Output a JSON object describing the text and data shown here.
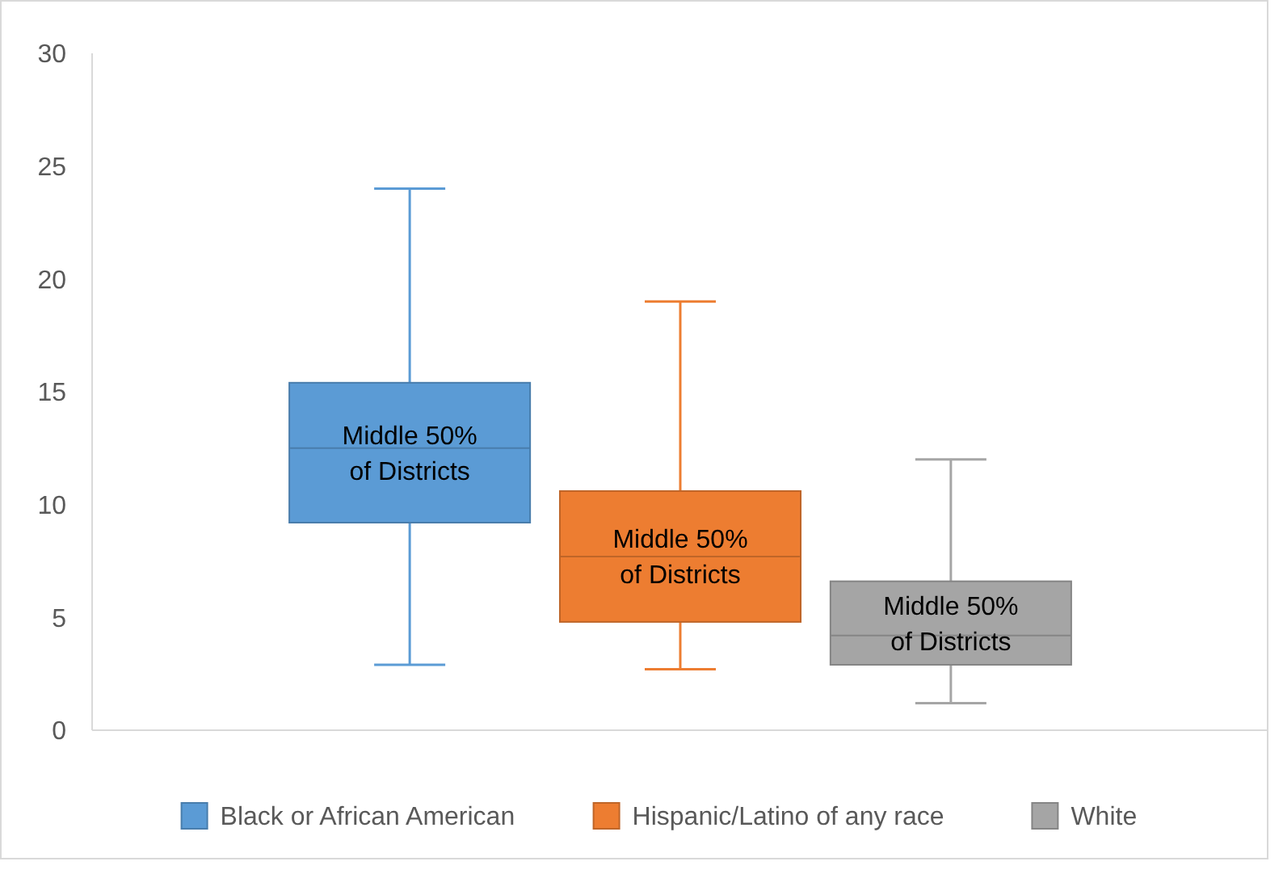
{
  "chart_data": {
    "type": "box",
    "categories": [
      null
    ],
    "ylim": [
      0,
      30
    ],
    "yticks": [
      0,
      5,
      10,
      15,
      20,
      25,
      30
    ],
    "grid": false,
    "legend": "bottom",
    "series": [
      {
        "name": "Black or African American",
        "color": "#5b9bd5",
        "boxes": [
          {
            "low": 2.9,
            "q1": 9.2,
            "median": 12.5,
            "q3": 15.4,
            "high": 24
          }
        ]
      },
      {
        "name": "Hispanic/Latino of any race",
        "color": "#ed7d31",
        "boxes": [
          {
            "low": 2.7,
            "q1": 4.8,
            "median": 7.7,
            "q3": 10.6,
            "high": 19
          }
        ]
      },
      {
        "name": "White",
        "color": "#a5a5a5",
        "boxes": [
          {
            "low": 1.2,
            "q1": 2.9,
            "median": 4.2,
            "q3": 6.6,
            "high": 12
          }
        ]
      }
    ],
    "annotations": [
      "Middle 50%\nof Districts",
      "Middle 50%\nof Districts",
      "Middle 50%\nof Districts"
    ]
  }
}
